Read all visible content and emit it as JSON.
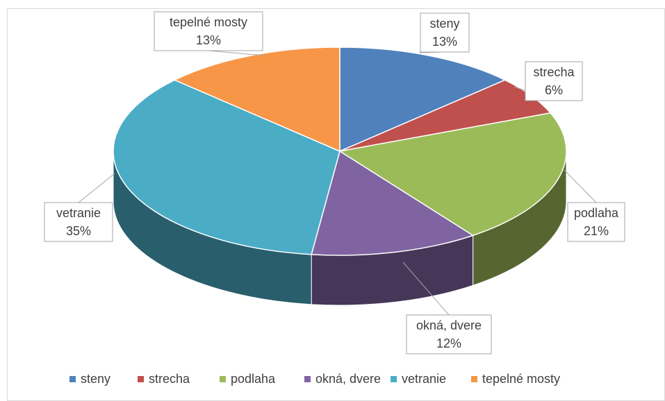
{
  "chart_data": {
    "type": "pie",
    "categories": [
      "steny",
      "strecha",
      "podlaha",
      "okná, dvere",
      "vetranie",
      "tepelné mosty"
    ],
    "values": [
      13,
      6,
      21,
      12,
      35,
      13
    ],
    "value_labels": [
      "13%",
      "6%",
      "21%",
      "12%",
      "35%",
      "13%"
    ],
    "colors": [
      "#4f81bd",
      "#c0504d",
      "#9bbb59",
      "#8064a2",
      "#4bacc6",
      "#f79646"
    ],
    "legend": "bottom"
  }
}
